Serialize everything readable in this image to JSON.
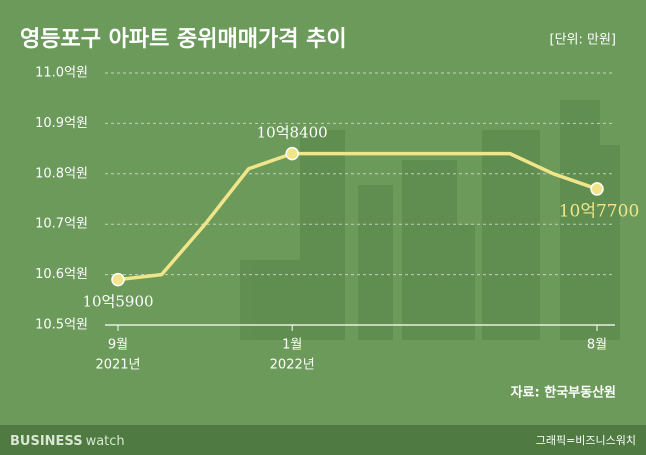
{
  "chart_data": {
    "type": "line",
    "title": "영등포구 아파트 중위매매가격 추이",
    "unit": "[단위: 만원]",
    "categories": [
      "9월",
      null,
      null,
      null,
      "1월",
      null,
      null,
      null,
      null,
      null,
      null,
      "8월"
    ],
    "category_years": [
      "2021년",
      null,
      null,
      null,
      "2022년",
      null,
      null,
      null,
      null,
      null,
      null,
      null
    ],
    "series": [
      {
        "name": "중위매매가격",
        "color": "#f1e58a",
        "values": [
          10.59,
          10.6,
          10.7,
          10.81,
          10.84,
          10.84,
          10.84,
          10.84,
          10.84,
          10.84,
          10.8,
          10.77
        ],
        "value_labels": [
          "10억5900",
          null,
          null,
          null,
          "10억8400",
          null,
          null,
          null,
          null,
          null,
          null,
          "10억7700"
        ]
      }
    ],
    "ylim": [
      10.5,
      11.0
    ],
    "yticks": [
      {
        "value": 10.5,
        "label": "10.5억원"
      },
      {
        "value": 10.6,
        "label": "10.6억원"
      },
      {
        "value": 10.7,
        "label": "10.7억원"
      },
      {
        "value": 10.8,
        "label": "10.8억원"
      },
      {
        "value": 10.9,
        "label": "10.9억원"
      },
      {
        "value": 11.0,
        "label": "11.0억원"
      }
    ],
    "grid": true,
    "source": "자료: 한국부동산원",
    "brand_bold": "BUSINESS",
    "brand_light": "watch",
    "credit": "그래픽=비즈니스워치"
  }
}
